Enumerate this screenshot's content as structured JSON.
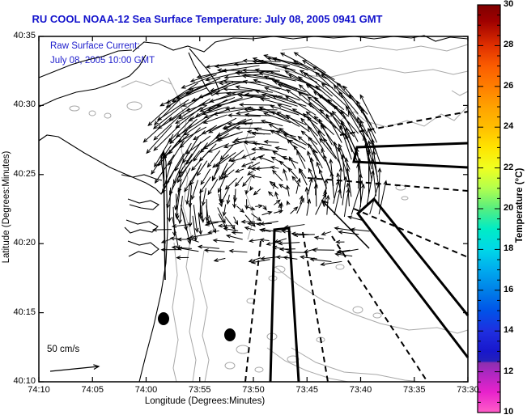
{
  "title": "RU COOL  NOAA-12  Sea Surface Temperature:  July 08, 2005 0941 GMT",
  "annotation": {
    "line1": "Raw Surface Current:",
    "line2": "July 08, 2005 10:00 GMT"
  },
  "axes": {
    "xlabel": "Longitude (Degrees:Minutes)",
    "ylabel": "Latitude (Degrees:Minutes)",
    "x_ticks": [
      "74:10",
      "74:05",
      "74:00",
      "73:55",
      "73:50",
      "73:45",
      "73:40",
      "73:35",
      "73:30"
    ],
    "y_ticks": [
      "40:35",
      "40:30",
      "40:25",
      "40:20",
      "40:15",
      "40:10"
    ]
  },
  "colorbar": {
    "label": "Temperature (°C)",
    "tick_labels": [
      "30",
      "28",
      "26",
      "24",
      "22",
      "20",
      "18",
      "16",
      "14",
      "12",
      "10"
    ],
    "range": [
      10,
      30
    ],
    "gradient_stops": [
      [
        0,
        "#7f0000"
      ],
      [
        4,
        "#9f0000"
      ],
      [
        10,
        "#e03000"
      ],
      [
        15,
        "#fb5c00"
      ],
      [
        20,
        "#ff7e00"
      ],
      [
        25,
        "#ffa200"
      ],
      [
        30,
        "#ffbe00"
      ],
      [
        35,
        "#ffe400"
      ],
      [
        40,
        "#f0ff20"
      ],
      [
        45,
        "#b2ff4e"
      ],
      [
        50,
        "#55ee80"
      ],
      [
        55,
        "#00ecc6"
      ],
      [
        60,
        "#00d8e8"
      ],
      [
        65,
        "#00abee"
      ],
      [
        70,
        "#0080e8"
      ],
      [
        75,
        "#0053e8"
      ],
      [
        80,
        "#1f2fe0"
      ],
      [
        85,
        "#1817cc"
      ],
      [
        87.4,
        "#2420ba"
      ],
      [
        87.8,
        "#8c2fae"
      ],
      [
        90,
        "#a928c0"
      ],
      [
        95,
        "#e822cc"
      ],
      [
        100,
        "#ff5ec8"
      ]
    ]
  },
  "scale_arrow": {
    "label": "50 cm/s",
    "line": [
      62,
      459,
      122,
      453
    ]
  },
  "chart_data": {
    "type": "map-quiver",
    "description": "AVHRR sea-surface-temperature map region (New York Bight) overlaid with CODAR raw surface current vectors forming a cyclonic eddy, HF-radar beam sectors, bathymetry contours and coastline.",
    "x_range_lon_west": [
      "74:10",
      "73:30"
    ],
    "y_range_lat_north": [
      "40:10",
      "40:35"
    ],
    "temperature_scale_c": [
      10,
      30
    ],
    "layout": {
      "plot": [
        48,
        45,
        578,
        472
      ],
      "colorbar": [
        590,
        6,
        618,
        510
      ]
    },
    "quiver": {
      "grid": [
        192,
        56,
        470,
        322,
        11
      ],
      "center": [
        332,
        215
      ],
      "ellipse_radii": [
        152,
        142
      ],
      "omega": 0.27,
      "drift": [
        -8,
        -1
      ],
      "south_cut": 55,
      "rotation": "counterclockwise",
      "outliers": [
        [
          204,
          346,
          202,
          188
        ],
        [
          456,
          307,
          398,
          248
        ]
      ]
    },
    "radar_beams": [
      [
        [
          578,
          177
        ],
        [
          441,
          182
        ],
        [
          437,
          200
        ],
        [
          578,
          207
        ]
      ],
      [
        [
          578,
          390
        ],
        [
          462,
          246
        ],
        [
          442,
          264
        ],
        [
          578,
          442
        ]
      ],
      [
        [
          334,
          472
        ],
        [
          339,
          284
        ],
        [
          357,
          282
        ],
        [
          369,
          472
        ]
      ]
    ],
    "dashed_bearings": [
      [
        420,
        167,
        578,
        138
      ],
      [
        380,
        220,
        578,
        236
      ],
      [
        437,
        258,
        578,
        318
      ],
      [
        410,
        292,
        528,
        472
      ],
      [
        322,
        298,
        303,
        472
      ],
      [
        374,
        287,
        405,
        472
      ]
    ],
    "station_dots": [
      [
        202,
        394,
        7,
        8
      ],
      [
        284,
        414,
        7,
        8
      ]
    ],
    "coastlines": [
      [
        [
          164,
          64
        ],
        [
          178,
          52
        ],
        [
          196,
          54
        ],
        [
          214,
          62
        ],
        [
          232,
          57
        ],
        [
          252,
          64
        ],
        [
          266,
          52
        ],
        [
          288,
          47
        ],
        [
          312,
          48
        ],
        [
          338,
          45
        ],
        [
          362,
          48
        ],
        [
          388,
          45
        ],
        [
          412,
          47
        ],
        [
          438,
          45
        ],
        [
          462,
          48
        ],
        [
          486,
          45
        ],
        [
          508,
          47
        ],
        [
          524,
          44
        ],
        [
          538,
          51
        ],
        [
          556,
          46
        ],
        [
          578,
          48
        ]
      ],
      [
        [
          234,
          60
        ],
        [
          244,
          72
        ],
        [
          256,
          86
        ],
        [
          266,
          100
        ],
        [
          271,
          113
        ],
        [
          262,
          118
        ],
        [
          254,
          107
        ],
        [
          247,
          93
        ],
        [
          239,
          79
        ],
        [
          233,
          65
        ]
      ],
      [
        [
          48,
          96
        ],
        [
          68,
          88
        ],
        [
          88,
          80
        ],
        [
          108,
          74
        ],
        [
          126,
          70
        ],
        [
          146,
          63
        ],
        [
          163,
          62
        ]
      ],
      [
        [
          48,
          132
        ],
        [
          70,
          122
        ],
        [
          94,
          114
        ],
        [
          118,
          110
        ],
        [
          142,
          102
        ],
        [
          160,
          94
        ],
        [
          172,
          82
        ],
        [
          180,
          68
        ]
      ],
      [
        [
          48,
          174
        ],
        [
          58,
          167
        ],
        [
          72,
          169
        ],
        [
          88,
          179
        ],
        [
          104,
          189
        ],
        [
          120,
          198
        ],
        [
          136,
          207
        ],
        [
          152,
          214
        ],
        [
          166,
          220
        ],
        [
          180,
          226
        ],
        [
          192,
          233
        ],
        [
          199,
          240
        ],
        [
          203,
          232
        ],
        [
          201,
          212
        ],
        [
          199,
          196
        ],
        [
          202,
          186
        ],
        [
          205,
          200
        ],
        [
          206,
          240
        ],
        [
          207,
          285
        ],
        [
          205,
          325
        ],
        [
          199,
          362
        ],
        [
          190,
          402
        ],
        [
          180,
          440
        ],
        [
          172,
          472
        ]
      ],
      [
        [
          150,
          216
        ],
        [
          164,
          219
        ],
        [
          178,
          216
        ],
        [
          192,
          221
        ],
        [
          200,
          223
        ]
      ],
      [
        [
          158,
          246
        ],
        [
          172,
          251
        ],
        [
          186,
          248
        ],
        [
          196,
          253
        ],
        [
          189,
          259
        ],
        [
          174,
          257
        ],
        [
          160,
          253
        ]
      ],
      [
        [
          156,
          272
        ],
        [
          170,
          277
        ],
        [
          184,
          274
        ],
        [
          195,
          280
        ],
        [
          188,
          287
        ],
        [
          173,
          284
        ],
        [
          161,
          288
        ],
        [
          154,
          281
        ]
      ],
      [
        [
          158,
          298
        ],
        [
          172,
          303
        ],
        [
          186,
          300
        ],
        [
          196,
          308
        ],
        [
          187,
          315
        ],
        [
          171,
          311
        ],
        [
          159,
          317
        ]
      ]
    ],
    "bathymetry_contours": [
      [
        [
          348,
          62
        ],
        [
          380,
          58
        ],
        [
          420,
          64
        ],
        [
          455,
          57
        ],
        [
          490,
          62
        ],
        [
          520,
          57
        ],
        [
          552,
          63
        ],
        [
          578,
          55
        ]
      ],
      [
        [
          340,
          84
        ],
        [
          372,
          92
        ],
        [
          405,
          96
        ],
        [
          440,
          88
        ],
        [
          470,
          84
        ],
        [
          500,
          90
        ],
        [
          535,
          86
        ],
        [
          560,
          92
        ],
        [
          578,
          88
        ]
      ],
      [
        [
          418,
          150
        ],
        [
          438,
          138
        ],
        [
          452,
          150
        ],
        [
          478,
          157
        ],
        [
          503,
          149
        ],
        [
          524,
          156
        ],
        [
          545,
          141
        ],
        [
          561,
          149
        ],
        [
          578,
          131
        ]
      ],
      [
        [
          558,
          112
        ],
        [
          568,
          118
        ],
        [
          578,
          113
        ]
      ],
      [
        [
          208,
          96
        ],
        [
          220,
          120
        ],
        [
          230,
          150
        ],
        [
          224,
          185
        ],
        [
          232,
          220
        ],
        [
          226,
          255
        ],
        [
          236,
          290
        ],
        [
          230,
          330
        ],
        [
          240,
          370
        ],
        [
          234,
          410
        ],
        [
          242,
          445
        ],
        [
          238,
          472
        ]
      ],
      [
        [
          215,
          300
        ],
        [
          219,
          340
        ],
        [
          213,
          380
        ],
        [
          220,
          420
        ],
        [
          214,
          455
        ],
        [
          218,
          472
        ]
      ],
      [
        [
          252,
          310
        ],
        [
          247,
          345
        ],
        [
          256,
          380
        ],
        [
          250,
          415
        ],
        [
          258,
          445
        ],
        [
          253,
          472
        ]
      ],
      [
        [
          340,
          330
        ],
        [
          368,
          352
        ],
        [
          400,
          372
        ],
        [
          436,
          388
        ],
        [
          470,
          400
        ],
        [
          505,
          408
        ],
        [
          540,
          405
        ],
        [
          565,
          412
        ],
        [
          578,
          408
        ]
      ],
      [
        [
          330,
          430
        ],
        [
          352,
          446
        ],
        [
          378,
          458
        ],
        [
          408,
          468
        ],
        [
          430,
          472
        ]
      ],
      [
        [
          360,
          430
        ],
        [
          390,
          448
        ],
        [
          425,
          460
        ],
        [
          465,
          463
        ],
        [
          500,
          470
        ],
        [
          520,
          472
        ]
      ],
      [
        [
          312,
          148
        ],
        [
          302,
          178
        ],
        [
          314,
          208
        ],
        [
          304,
          240
        ],
        [
          314,
          268
        ],
        [
          306,
          296
        ]
      ],
      [
        [
          150,
          108
        ],
        [
          168,
          100
        ],
        [
          186,
          106
        ],
        [
          200,
          99
        ],
        [
          212,
          104
        ]
      ]
    ],
    "bathymetry_blobs": [
      [
        92,
        134,
        6,
        3
      ],
      [
        114,
        140,
        4,
        3
      ],
      [
        133,
        143,
        4,
        3
      ],
      [
        166,
        131,
        9,
        5
      ],
      [
        345,
        333,
        7,
        4
      ],
      [
        337,
        344,
        5,
        3
      ],
      [
        300,
        432,
        8,
        5
      ],
      [
        336,
        416,
        6,
        4
      ],
      [
        362,
        444,
        7,
        4
      ],
      [
        396,
        420,
        5,
        3
      ],
      [
        442,
        383,
        6,
        4
      ],
      [
        466,
        390,
        5,
        3
      ],
      [
        420,
        330,
        5,
        3
      ],
      [
        310,
        372,
        5,
        3
      ],
      [
        284,
        452,
        6,
        4
      ],
      [
        320,
        457,
        5,
        3
      ],
      [
        495,
        232,
        6,
        3
      ],
      [
        500,
        245,
        4,
        2
      ]
    ]
  }
}
